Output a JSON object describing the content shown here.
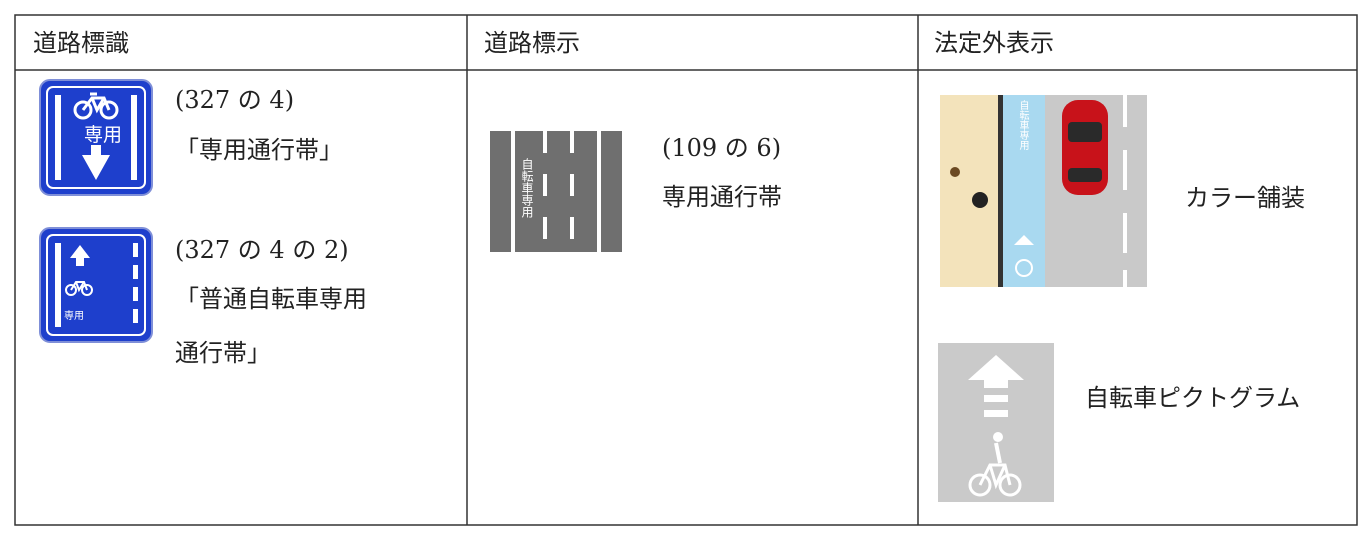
{
  "table": {
    "headers": [
      "道路標識",
      "道路標示",
      "法定外表示"
    ],
    "signs": [
      {
        "code": "(327 の 4)",
        "label": [
          "「専用通行帯」"
        ],
        "icon_text": "専用"
      },
      {
        "code": "(327 の 4 の 2)",
        "label": [
          "「普通自転車専用",
          "通行帯」"
        ],
        "icon_text": "専用"
      }
    ],
    "markings": [
      {
        "code": "(109 の 6)",
        "label": "専用通行帯",
        "icon_text": "自転車専用"
      }
    ],
    "non_statutory": [
      {
        "label": "カラー舗装",
        "icon_text": "自転車専用"
      },
      {
        "label": "自転車ピクトグラム"
      }
    ]
  }
}
